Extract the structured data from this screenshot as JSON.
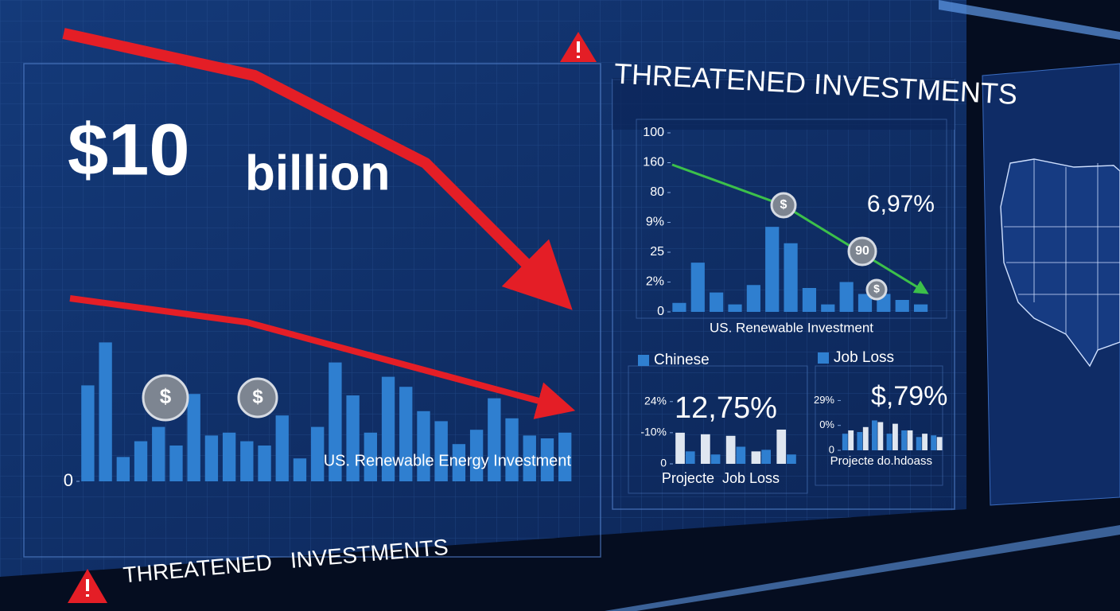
{
  "headline": {
    "amount": "$10",
    "unit": "billion"
  },
  "banner_top": "THREATENED INVESTMENTS",
  "banner_bottom": "THREATENED   INVESTMENTS",
  "chart_data": [
    {
      "type": "bar",
      "x_label": "US. Renewable Energy Investment",
      "color": "#2f7fd0",
      "values": [
        67,
        97,
        17,
        28,
        38,
        25,
        61,
        32,
        34,
        28,
        25,
        46,
        16,
        38,
        83,
        60,
        34,
        73,
        66,
        49,
        42,
        26,
        36,
        58,
        44,
        32,
        30,
        34
      ],
      "ylim": [
        0,
        100
      ],
      "yticks": [
        0
      ],
      "annotations": [
        "$",
        "$"
      ]
    },
    {
      "type": "bar",
      "x_label": "US. Renewable Investment",
      "color": "#2f7fd0",
      "values": [
        6,
        33,
        13,
        5,
        18,
        57,
        46,
        16,
        5,
        20,
        12,
        12,
        8,
        5
      ],
      "ylim": [
        0,
        120
      ],
      "yticks": [
        {
          "value": 120,
          "label": "100"
        },
        {
          "value": 100,
          "label": "160"
        },
        80,
        {
          "value": 60,
          "label": "9%"
        },
        {
          "value": 40,
          "label": "25"
        },
        {
          "value": 20,
          "label": "2%"
        },
        0
      ],
      "annotations": [
        "6,97%",
        "$",
        "90",
        "$"
      ]
    },
    {
      "type": "bar",
      "x_label": "Projecte  Job Loss",
      "series": [
        {
          "color": "#dfe6f0",
          "values": [
            20,
            19,
            18,
            8,
            22
          ]
        },
        {
          "name": "Chinese",
          "color": "#2f7fd0",
          "values": [
            8,
            6,
            11,
            9,
            6
          ]
        }
      ],
      "ylim": [
        0,
        45
      ],
      "yticks": [
        {
          "value": 40,
          "label": "24%"
        },
        {
          "value": 20,
          "label": "-10%"
        },
        0
      ],
      "annotations": [
        "12,75%"
      ]
    },
    {
      "type": "bar",
      "x_label": "Projecte do.hdoass",
      "series": [
        {
          "name": "Job Loss",
          "color": "#2f7fd0",
          "values": [
            10,
            11,
            18,
            10,
            12,
            8,
            9
          ]
        },
        {
          "color": "#dfe6f0",
          "values": [
            12,
            14,
            17,
            16,
            12,
            10,
            8
          ]
        }
      ],
      "ylim": [
        0,
        35
      ],
      "yticks": [
        {
          "value": 30,
          "label": "29%"
        },
        {
          "value": 15,
          "label": "0%"
        },
        0
      ],
      "annotations": [
        "$,79%"
      ]
    }
  ]
}
